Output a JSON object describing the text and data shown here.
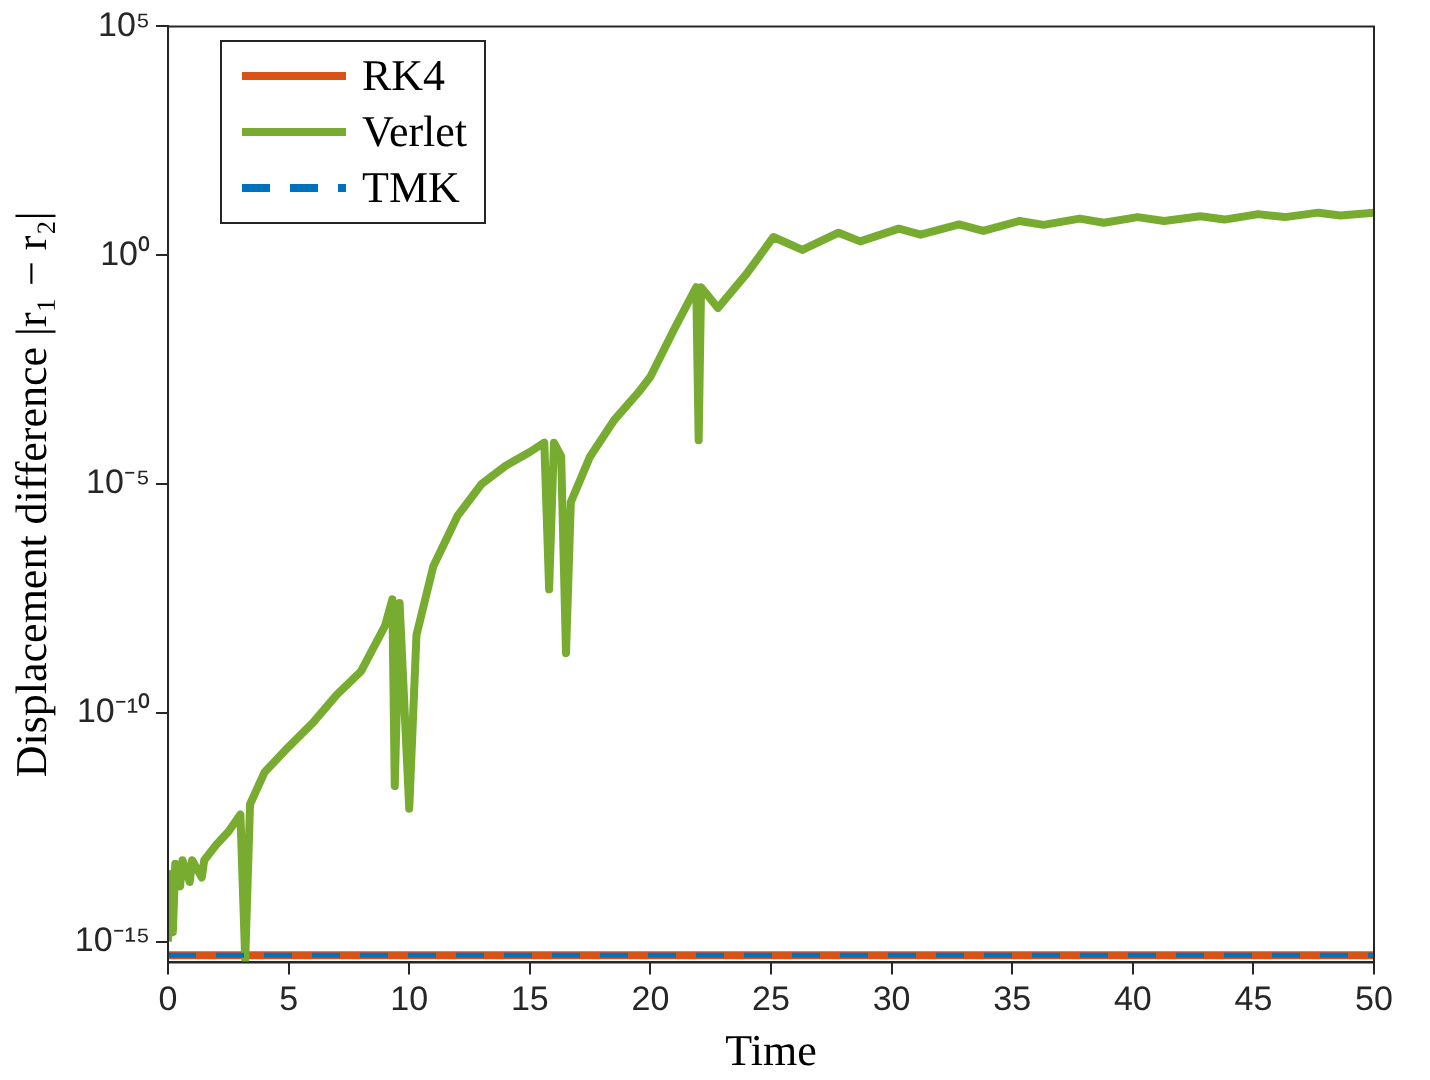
{
  "chart_data": {
    "type": "line",
    "xlabel": "Time",
    "ylabel": "Displacement difference |r₁ − r₂|",
    "log": "y",
    "grid": false,
    "legend": "top left",
    "marker": "none",
    "xlim": [
      0,
      50
    ],
    "xticks": [
      0,
      5,
      10,
      15,
      20,
      25,
      30,
      35,
      40,
      45,
      50
    ],
    "ylim": [
      3.5e-16,
      100000
    ],
    "yticks": [
      {
        "value": 1e-15,
        "label": "10⁻¹⁵"
      },
      {
        "value": 1e-10,
        "label": "10⁻¹⁰"
      },
      {
        "value": 1e-05,
        "label": "10⁻⁵"
      },
      {
        "value": 1,
        "label": "10⁰"
      },
      {
        "value": 100000,
        "label": "10⁵"
      }
    ],
    "series": [
      {
        "name": "RK4",
        "color": "#d95319",
        "line_style": "solid",
        "x": [
          0,
          50
        ],
        "values": [
          5e-16,
          5e-16
        ]
      },
      {
        "name": "Verlet",
        "color": "#77ac30",
        "line_style": "solid",
        "x": [
          0,
          0.1,
          0.2,
          0.3,
          0.5,
          0.6,
          0.9,
          1.0,
          1.4,
          1.5,
          2.0,
          2.5,
          3.0,
          3.2,
          3.4,
          4,
          5,
          6,
          7,
          8,
          9,
          9.3,
          9.4,
          9.6,
          10.0,
          10.3,
          11,
          12,
          13,
          14,
          15,
          15.6,
          15.8,
          16.0,
          16.3,
          16.5,
          16.7,
          17.5,
          18.5,
          19.5,
          20,
          21,
          21.9,
          22.0,
          22.1,
          22.8,
          24,
          25.1,
          26.3,
          27.8,
          28.7,
          30.3,
          31.2,
          32.8,
          33.8,
          35.3,
          36.3,
          37.8,
          38.8,
          40.2,
          41.3,
          42.8,
          43.8,
          45.2,
          46.3,
          47.7,
          48.6,
          50
        ],
        "values": [
          1e-15,
          3e-14,
          1.6e-15,
          5e-14,
          1.6e-14,
          6e-14,
          2e-14,
          6e-14,
          2.5e-14,
          6e-14,
          1.3e-13,
          2.5e-13,
          6e-13,
          4e-16,
          1e-12,
          5e-12,
          1.8e-11,
          6e-11,
          2.5e-10,
          8e-10,
          8e-09,
          3e-08,
          2.5e-12,
          2.5e-08,
          8e-13,
          5e-09,
          1.6e-07,
          2e-06,
          1e-05,
          2.5e-05,
          5e-05,
          8e-05,
          5e-08,
          8e-05,
          4e-05,
          2e-09,
          4e-06,
          4e-05,
          0.00025,
          0.001,
          0.0022,
          0.025,
          0.2,
          9e-05,
          0.2,
          0.07,
          0.4,
          2.5,
          1.3,
          3.1,
          2,
          3.8,
          2.8,
          4.7,
          3.4,
          5.6,
          4.6,
          6.3,
          5.1,
          6.8,
          5.6,
          7.1,
          6,
          7.9,
          6.8,
          8.5,
          7.4,
          8.5
        ]
      },
      {
        "name": "TMK",
        "color": "#0072bd",
        "line_style": "dashed",
        "x": [
          0,
          50
        ],
        "values": [
          5e-16,
          5e-16
        ]
      }
    ]
  }
}
